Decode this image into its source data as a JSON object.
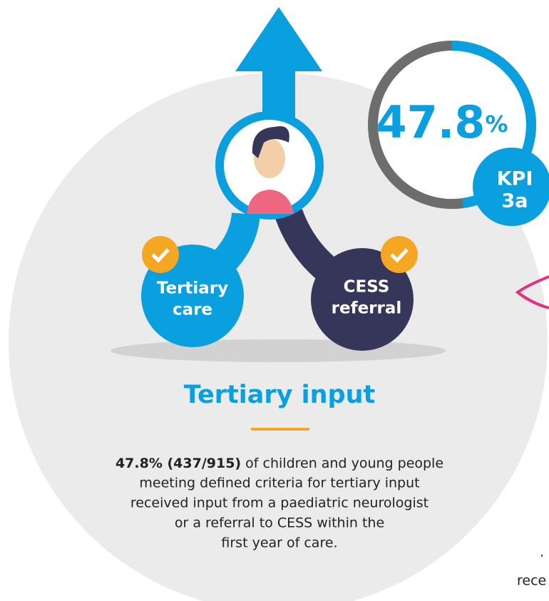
{
  "kpi": {
    "value": 47.8,
    "unit": "%",
    "label_lines": [
      "KPI",
      "3a"
    ]
  },
  "nodes": [
    {
      "label_lines": [
        "Tertiary",
        "care"
      ]
    },
    {
      "label_lines": [
        "CESS",
        "referral"
      ]
    }
  ],
  "title": "Tertiary input",
  "body": {
    "bold": "47.8% (437/915)",
    "lines": [
      " of children and young people",
      "meeting defined criteria for tertiary input",
      "received input from a paediatric neurologist",
      "or a referral to CESS within the",
      "first year of care."
    ]
  },
  "cut_off_text": [
    ".",
    "rece"
  ]
}
